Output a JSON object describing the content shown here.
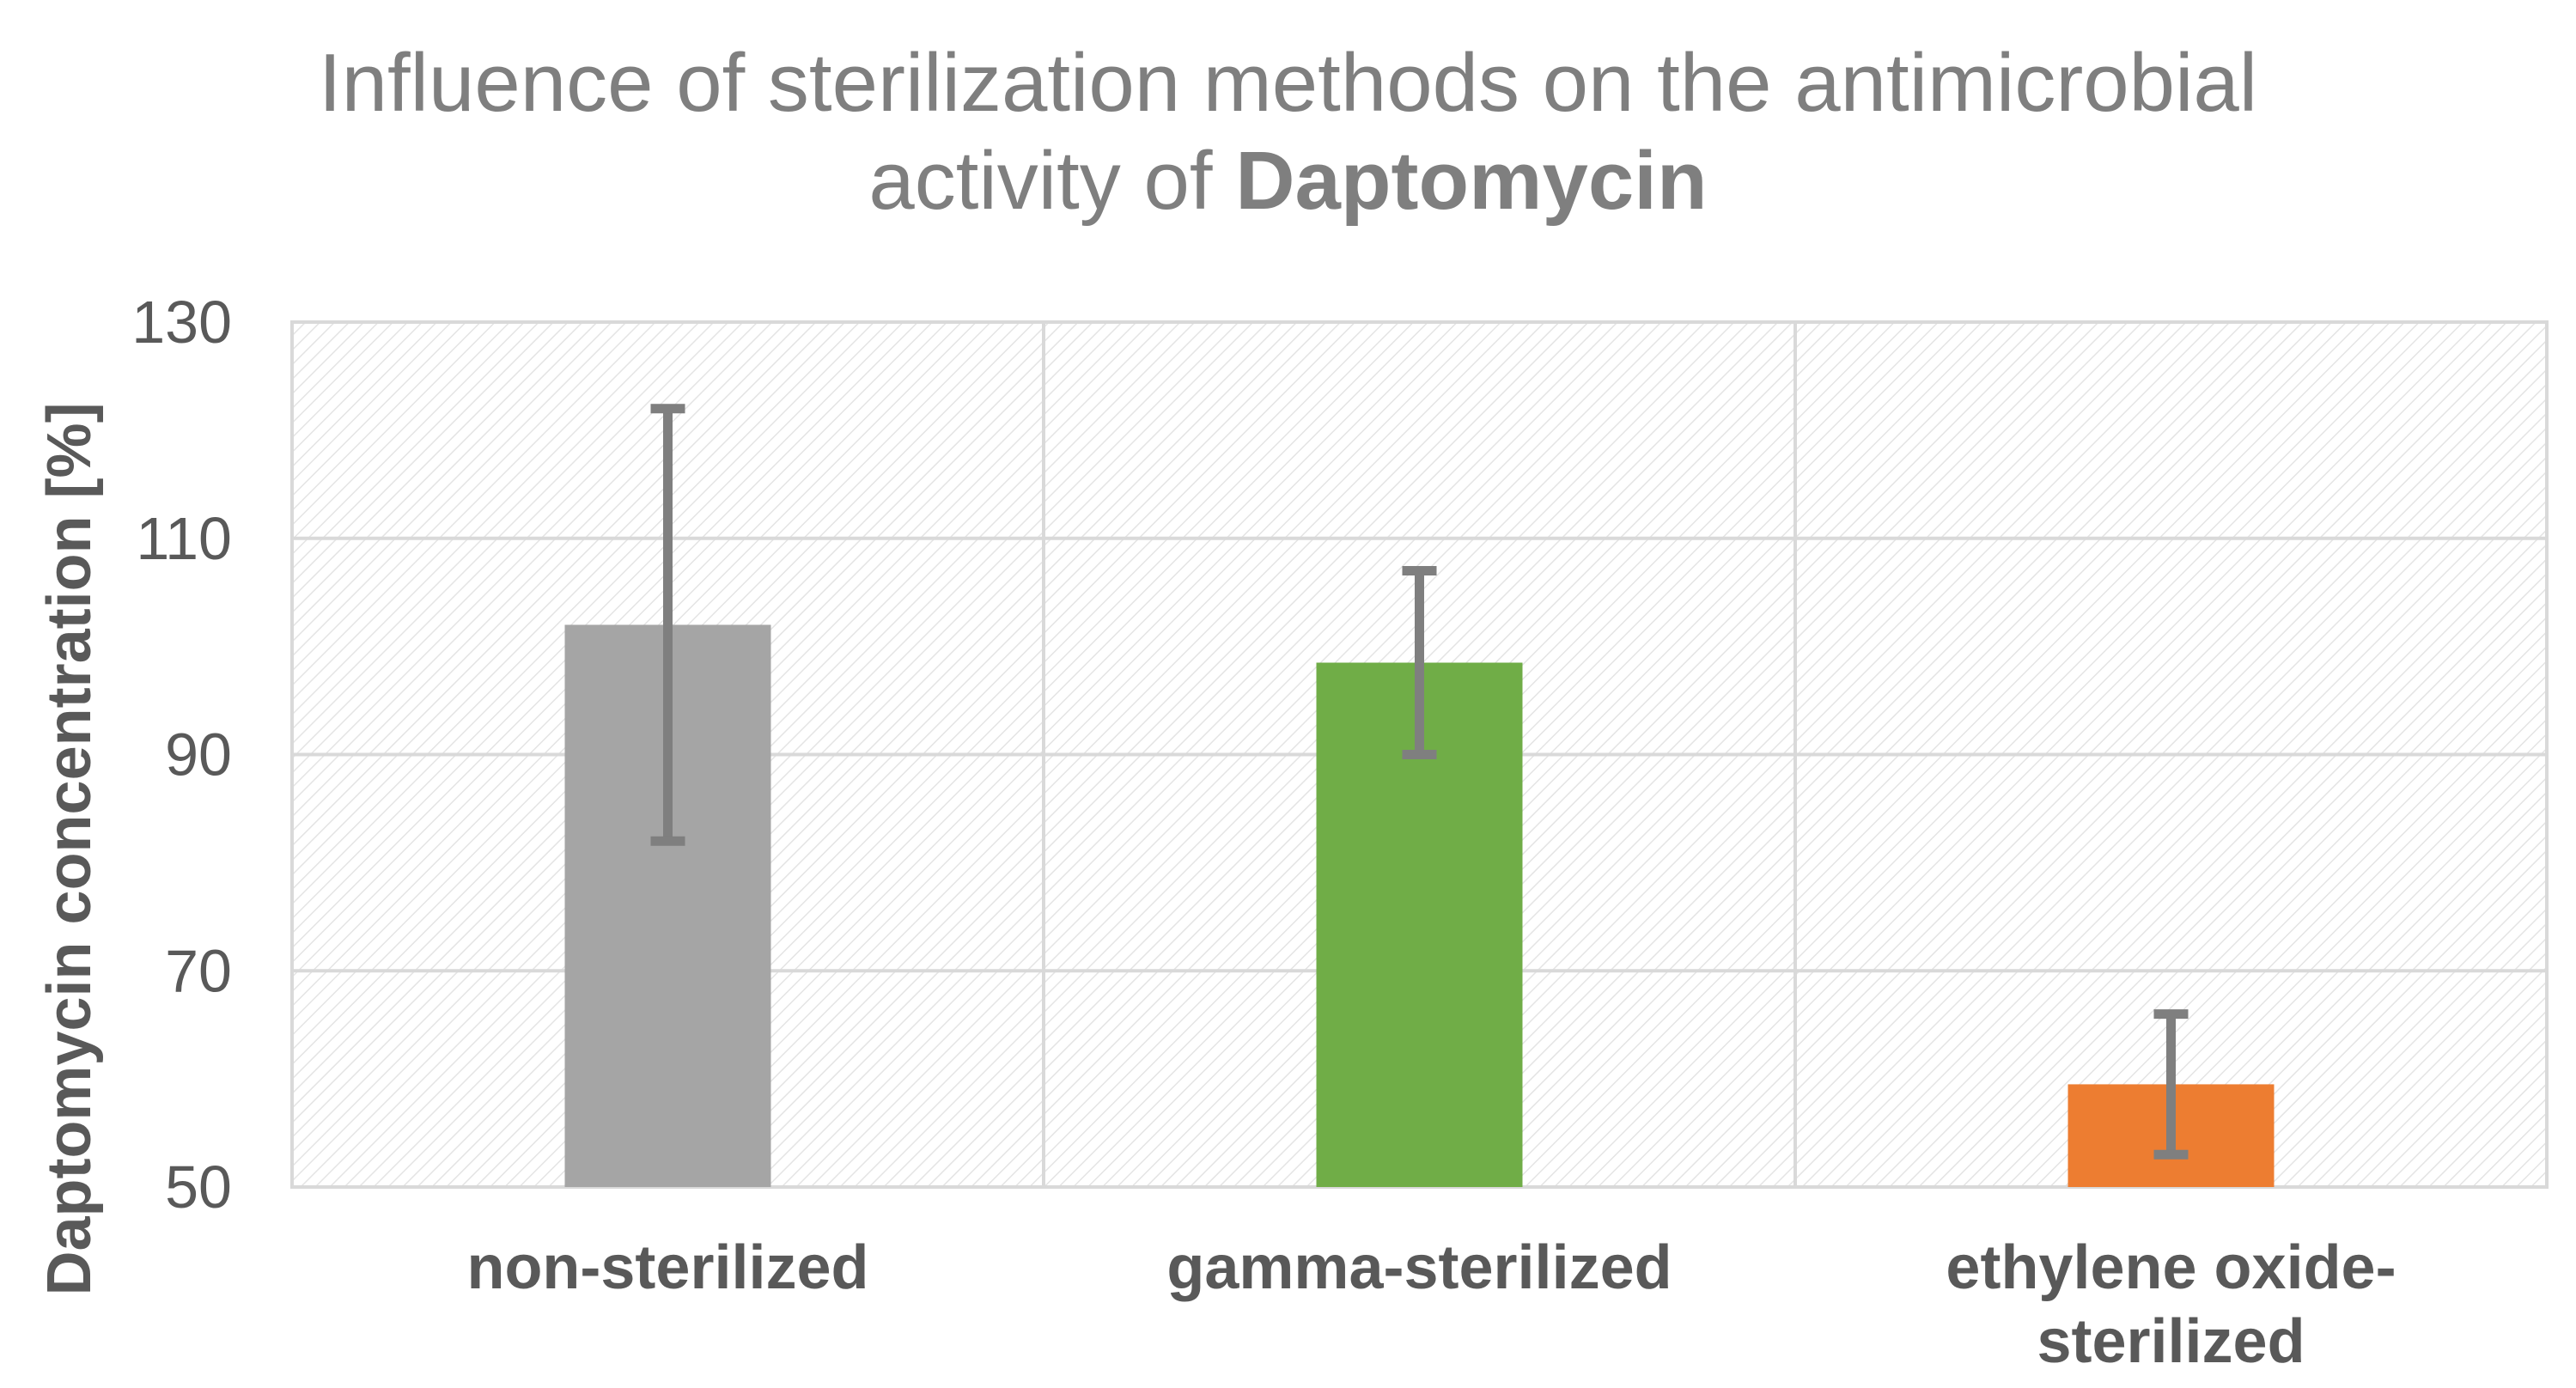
{
  "chart_data": {
    "type": "bar",
    "title": "Influence of sterilization methods on the antimicrobial activity of Daptomycin",
    "title_line1": "Influence of sterilization methods on the antimicrobial",
    "title_line2_prefix": "activity of ",
    "title_line2_bold": "Daptomycin",
    "xlabel": "",
    "ylabel": "Daptomycin concentration [%]",
    "ylim": [
      50,
      130
    ],
    "yticks": [
      50,
      70,
      90,
      110,
      130
    ],
    "categories": [
      "non-sterilized",
      "gamma-sterilized",
      "ethylene oxide-sterilized"
    ],
    "category_label_lines": [
      [
        "non-sterilized"
      ],
      [
        "gamma-sterilized"
      ],
      [
        "ethylene oxide-",
        "sterilized"
      ]
    ],
    "values": [
      102,
      98.5,
      59.5
    ],
    "error_low": [
      82,
      90,
      53
    ],
    "error_high": [
      122,
      107,
      66
    ],
    "colors": [
      "#a5a5a5",
      "#70ad47",
      "#ed7d31"
    ],
    "error_color": "#7f7f7f",
    "grid": true,
    "gridline_color": "#d9d9d9"
  }
}
